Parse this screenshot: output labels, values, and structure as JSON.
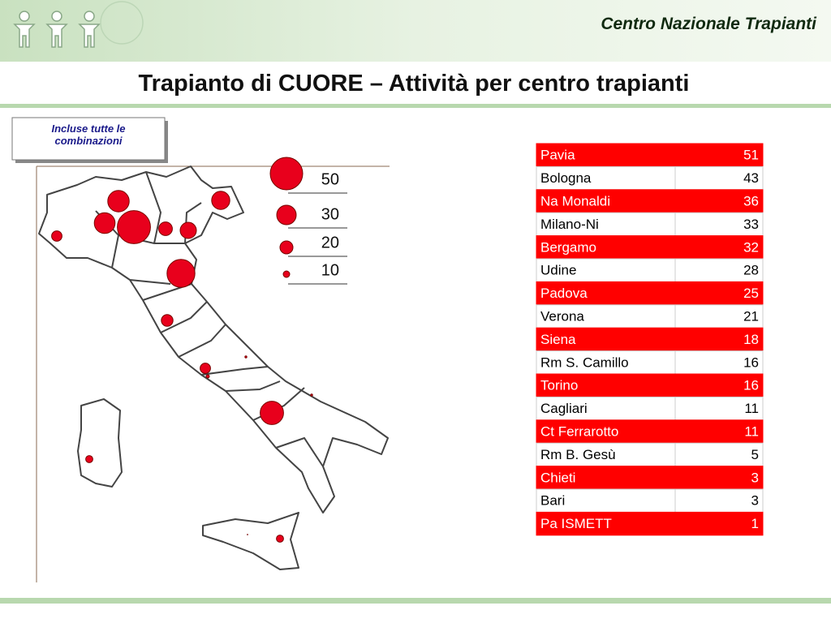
{
  "header": {
    "organization": "Centro Nazionale Trapianti",
    "title": "Trapianto di CUORE – Attività per centro trapianti"
  },
  "note": "Incluse tutte le combinazioni",
  "legend": {
    "sizes": [
      50,
      30,
      20,
      10
    ]
  },
  "table": {
    "rows": [
      [
        "Pavia",
        51
      ],
      [
        "Bologna",
        43
      ],
      [
        "Na Monaldi",
        36
      ],
      [
        "Milano-Ni",
        33
      ],
      [
        "Bergamo",
        32
      ],
      [
        "Udine",
        28
      ],
      [
        "Padova",
        25
      ],
      [
        "Verona",
        21
      ],
      [
        "Siena",
        18
      ],
      [
        "Rm S. Camillo",
        16
      ],
      [
        "Torino",
        16
      ],
      [
        "Cagliari",
        11
      ],
      [
        "Ct Ferrarotto",
        11
      ],
      [
        "Rm B. Gesù",
        5
      ],
      [
        "Chieti",
        3
      ],
      [
        "Bari",
        3
      ],
      [
        "Pa ISMETT",
        1
      ]
    ]
  }
}
